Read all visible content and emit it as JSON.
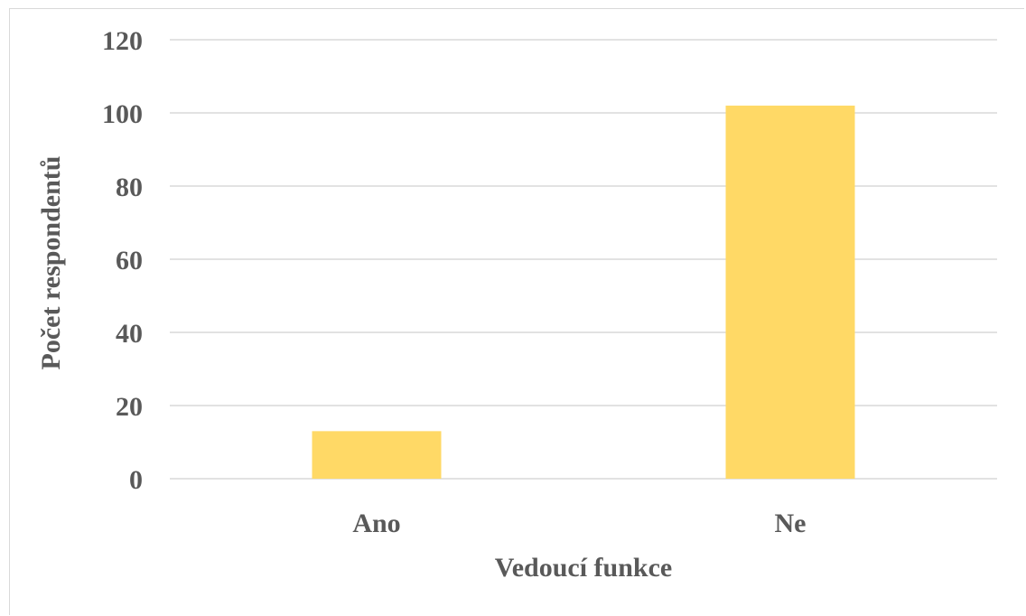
{
  "chart_data": {
    "type": "bar",
    "title": "",
    "categories": [
      "Ano",
      "Ne"
    ],
    "values": [
      13,
      102
    ],
    "xlabel": "Vedoucí funkce",
    "ylabel": "Počet respondentů",
    "ylim": [
      0,
      120
    ],
    "yticks": [
      "0",
      "20",
      "40",
      "60",
      "80",
      "100",
      "120"
    ],
    "grid": true,
    "legend": "none",
    "colors": {
      "bar": "#FFD966",
      "gridline": "#D9D9D9",
      "text": "#595959"
    }
  }
}
